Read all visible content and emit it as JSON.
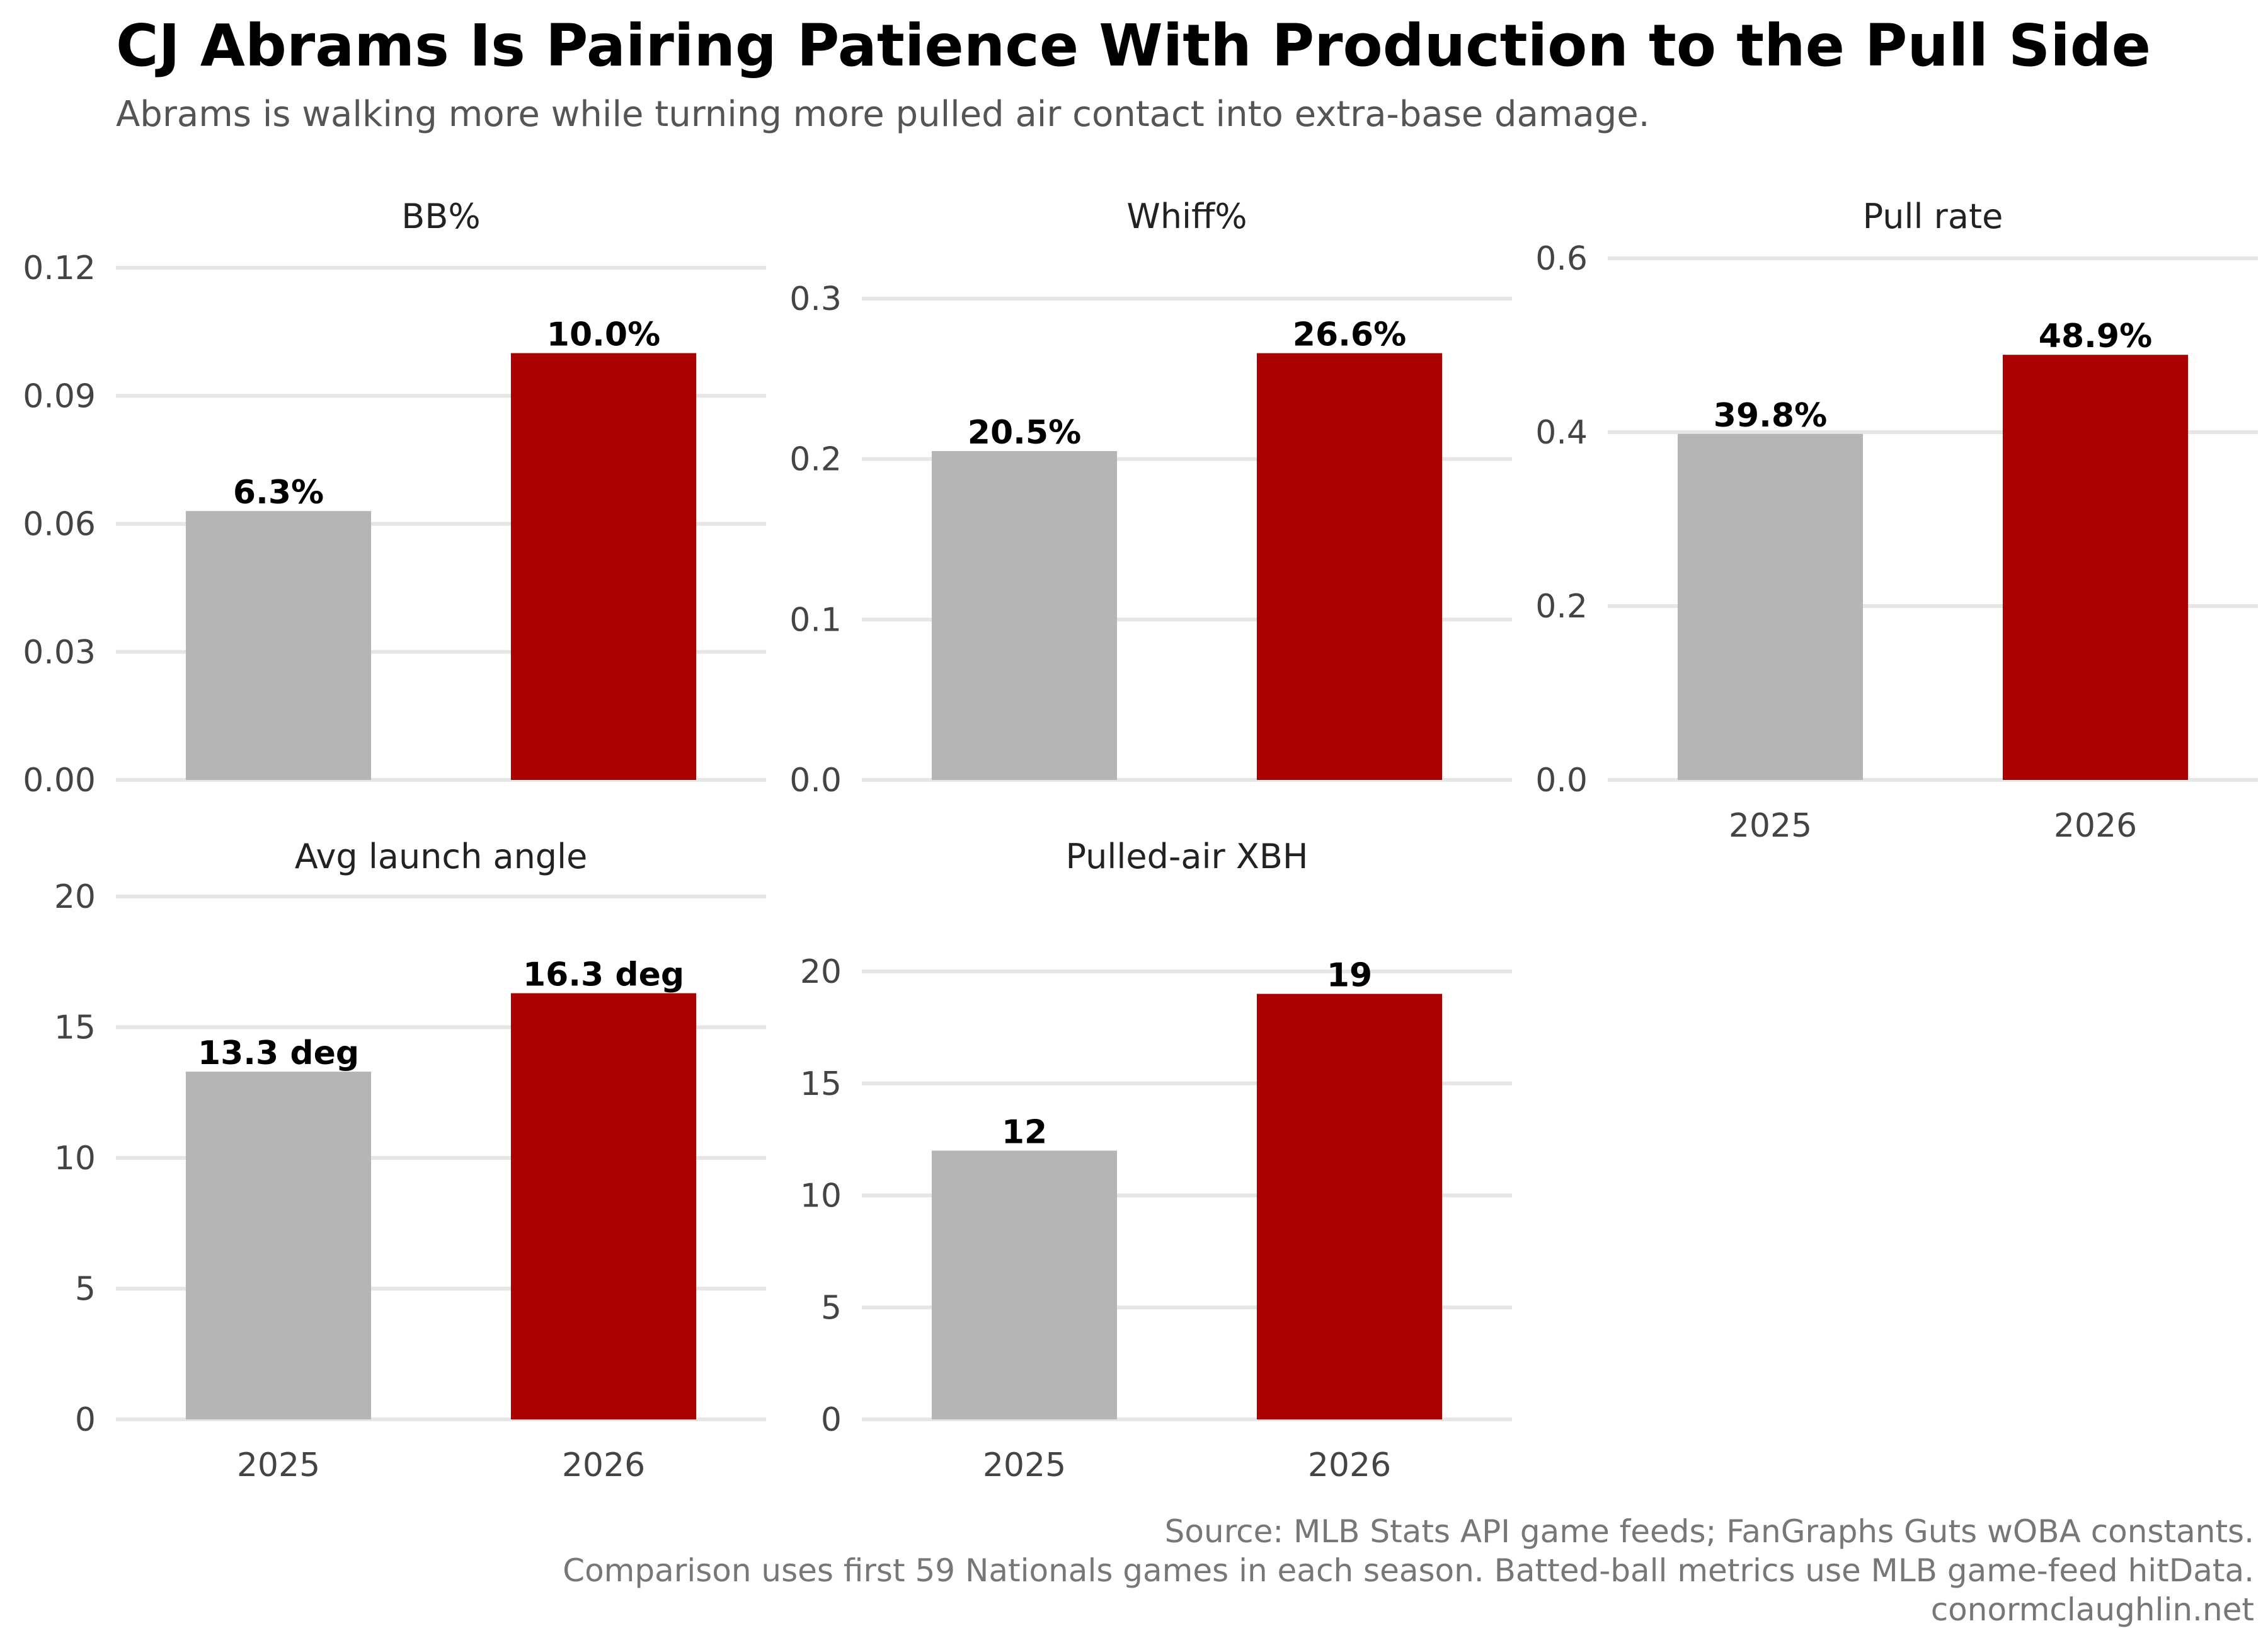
{
  "title": "CJ Abrams Is Pairing Patience With Production to the Pull Side",
  "subtitle": "Abrams is walking more while turning more pulled air contact into extra-base damage.",
  "caption": [
    "Source: MLB Stats API game feeds; FanGraphs Guts wOBA constants.",
    "Comparison uses first 59 Nationals games in each season. Batted-ball metrics use MLB game-feed hitData.",
    "conormclaughlin.net"
  ],
  "colors": {
    "2025": "#b5b5b5",
    "2026": "#aa0000"
  },
  "chart_data": [
    {
      "type": "bar",
      "title": "BB%",
      "categories": [
        "2025",
        "2026"
      ],
      "values": [
        0.063,
        0.1
      ],
      "labels": [
        "6.3%",
        "10.0%"
      ],
      "ylim": [
        0,
        0.12
      ],
      "yticks": [
        0,
        0.03,
        0.06,
        0.09,
        0.12
      ],
      "ytick_labels": [
        "0.00",
        "0.03",
        "0.06",
        "0.09",
        "0.12"
      ],
      "show_xlabels": false
    },
    {
      "type": "bar",
      "title": "Whiff%",
      "categories": [
        "2025",
        "2026"
      ],
      "values": [
        0.205,
        0.266
      ],
      "labels": [
        "20.5%",
        "26.6%"
      ],
      "ylim": [
        0,
        0.3
      ],
      "yticks": [
        0,
        0.1,
        0.2,
        0.3
      ],
      "ytick_labels": [
        "0.0",
        "0.1",
        "0.2",
        "0.3"
      ],
      "show_xlabels": false
    },
    {
      "type": "bar",
      "title": "Pull rate",
      "categories": [
        "2025",
        "2026"
      ],
      "values": [
        0.398,
        0.489
      ],
      "labels": [
        "39.8%",
        "48.9%"
      ],
      "ylim": [
        0,
        0.6
      ],
      "yticks": [
        0,
        0.2,
        0.4,
        0.6
      ],
      "ytick_labels": [
        "0.0",
        "0.2",
        "0.4",
        "0.6"
      ],
      "show_xlabels": true
    },
    {
      "type": "bar",
      "title": "Avg launch angle",
      "categories": [
        "2025",
        "2026"
      ],
      "values": [
        13.3,
        16.3
      ],
      "labels": [
        "13.3 deg",
        "16.3 deg"
      ],
      "ylim": [
        0,
        20
      ],
      "yticks": [
        0,
        5,
        10,
        15,
        20
      ],
      "ytick_labels": [
        "0",
        "5",
        "10",
        "15",
        "20"
      ],
      "show_xlabels": true
    },
    {
      "type": "bar",
      "title": "Pulled-air XBH",
      "categories": [
        "2025",
        "2026"
      ],
      "values": [
        12,
        19
      ],
      "labels": [
        "12",
        "19"
      ],
      "ylim": [
        0,
        20
      ],
      "yticks": [
        0,
        5,
        10,
        15,
        20
      ],
      "ytick_labels": [
        "0",
        "5",
        "10",
        "15",
        "20"
      ],
      "show_xlabels": true
    }
  ]
}
